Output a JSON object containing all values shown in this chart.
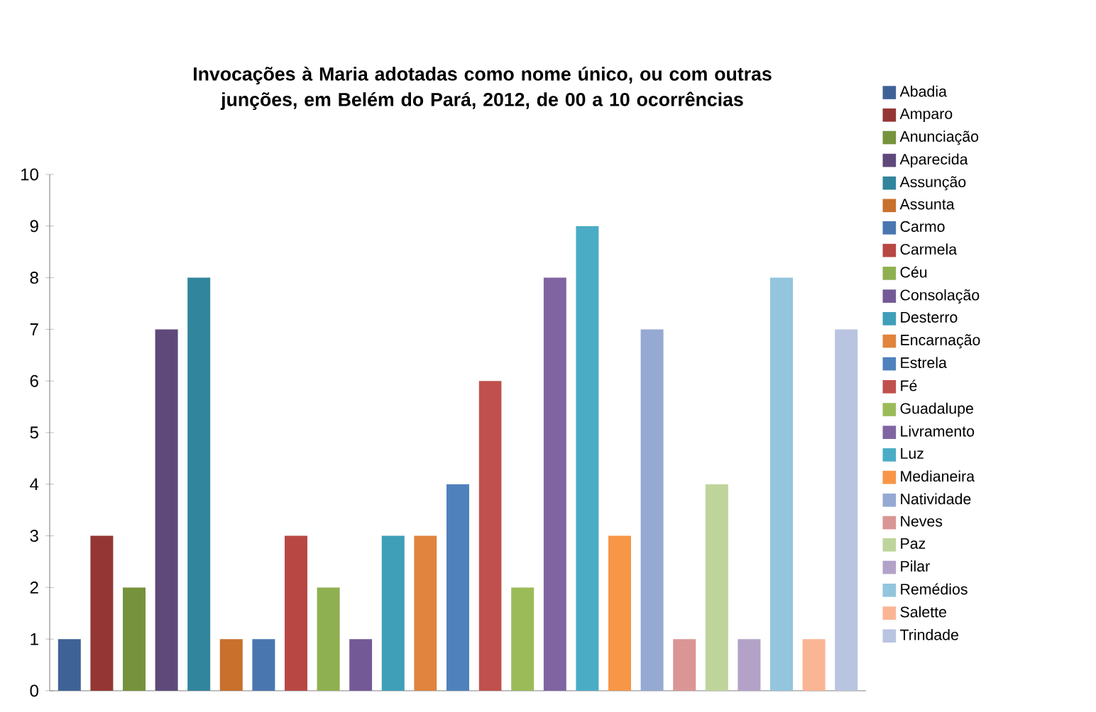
{
  "chart_data": {
    "type": "bar",
    "title": "Invocações à Maria adotadas como nome único, ou com outras junções, em Belém do Pará, 2012, de 00 a 10  ocorrências",
    "categories": [
      null
    ],
    "ylim": [
      0,
      10
    ],
    "yticks": [
      0,
      1,
      2,
      3,
      4,
      5,
      6,
      7,
      8,
      9,
      10
    ],
    "legend": "right",
    "grid": false,
    "series": [
      {
        "name": "Abadia",
        "color": "#3f6296",
        "values": [
          1
        ]
      },
      {
        "name": "Amparo",
        "color": "#943634",
        "values": [
          3
        ]
      },
      {
        "name": "Anunciação",
        "color": "#76923c",
        "values": [
          2
        ]
      },
      {
        "name": "Aparecida",
        "color": "#5f497a",
        "values": [
          7
        ]
      },
      {
        "name": "Assunção",
        "color": "#31859c",
        "values": [
          8
        ]
      },
      {
        "name": "Assunta",
        "color": "#c8702c",
        "values": [
          1
        ]
      },
      {
        "name": "Carmo",
        "color": "#4a76b0",
        "values": [
          1
        ]
      },
      {
        "name": "Carmela",
        "color": "#b84744",
        "values": [
          3
        ]
      },
      {
        "name": "Céu",
        "color": "#8fb050",
        "values": [
          2
        ]
      },
      {
        "name": "Consolação",
        "color": "#735a96",
        "values": [
          1
        ]
      },
      {
        "name": "Desterro",
        "color": "#3f9fb8",
        "values": [
          3
        ]
      },
      {
        "name": "Encarnação",
        "color": "#e0843e",
        "values": [
          3
        ]
      },
      {
        "name": "Estrela",
        "color": "#4f81bd",
        "values": [
          4
        ]
      },
      {
        "name": "Fé",
        "color": "#c0504d",
        "values": [
          6
        ]
      },
      {
        "name": "Guadalupe",
        "color": "#9bbb59",
        "values": [
          2
        ]
      },
      {
        "name": "Livramento",
        "color": "#8064a2",
        "values": [
          8
        ]
      },
      {
        "name": "Luz",
        "color": "#4bacc6",
        "values": [
          9
        ]
      },
      {
        "name": "Medianeira",
        "color": "#f79646",
        "values": [
          3
        ]
      },
      {
        "name": "Natividade",
        "color": "#95a9d2",
        "values": [
          7
        ]
      },
      {
        "name": "Neves",
        "color": "#d99694",
        "values": [
          1
        ]
      },
      {
        "name": "Paz",
        "color": "#bfd49b",
        "values": [
          4
        ]
      },
      {
        "name": "Pilar",
        "color": "#b3a2c7",
        "values": [
          1
        ]
      },
      {
        "name": "Remédios",
        "color": "#93c5dd",
        "values": [
          8
        ]
      },
      {
        "name": "Salette",
        "color": "#fab594",
        "values": [
          1
        ]
      },
      {
        "name": "Trindade",
        "color": "#b9c4e0",
        "values": [
          7
        ]
      }
    ]
  }
}
